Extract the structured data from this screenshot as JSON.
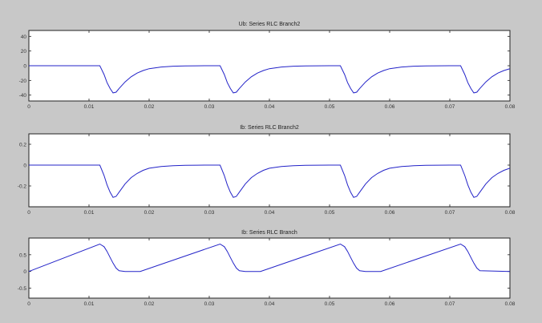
{
  "chart_data": [
    {
      "type": "line",
      "title": "Ub: Series RLC Branch2",
      "xlim": [
        0,
        0.08
      ],
      "ylim": [
        -48,
        48
      ],
      "xticks": [
        0,
        0.01,
        0.02,
        0.03,
        0.04,
        0.05,
        0.06,
        0.07,
        0.08
      ],
      "xtick_labels": [
        "0",
        "0.01",
        "0.02",
        "0.03",
        "0.04",
        "0.05",
        "0.06",
        "0.07",
        "0.08"
      ],
      "yticks": [
        40,
        20,
        0,
        -20,
        -40
      ],
      "ytick_labels": [
        "40",
        "20",
        "0",
        "-20",
        "-40"
      ],
      "series": [
        {
          "color": "#2323c8",
          "x": [
            0,
            0.0118,
            0.0125,
            0.013,
            0.0135,
            0.014,
            0.0145,
            0.015,
            0.016,
            0.017,
            0.018,
            0.019,
            0.02,
            0.022,
            0.024,
            0.026,
            0.028,
            0.03,
            0.0318,
            0.0325,
            0.033,
            0.0335,
            0.034,
            0.0345,
            0.035,
            0.036,
            0.037,
            0.038,
            0.039,
            0.04,
            0.042,
            0.044,
            0.046,
            0.048,
            0.05,
            0.0518,
            0.0525,
            0.053,
            0.0535,
            0.054,
            0.0545,
            0.055,
            0.056,
            0.057,
            0.058,
            0.059,
            0.06,
            0.062,
            0.064,
            0.066,
            0.068,
            0.07,
            0.0718,
            0.0725,
            0.073,
            0.0735,
            0.074,
            0.0745,
            0.075,
            0.076,
            0.077,
            0.078,
            0.079,
            0.08
          ],
          "y": [
            0,
            0,
            -12,
            -23,
            -31,
            -37,
            -36,
            -31,
            -22,
            -15,
            -10,
            -6.5,
            -4,
            -1.7,
            -0.7,
            -0.3,
            -0.1,
            0,
            0,
            -12,
            -23,
            -31,
            -37,
            -36,
            -31,
            -22,
            -15,
            -10,
            -6.5,
            -4,
            -1.7,
            -0.7,
            -0.3,
            -0.1,
            0,
            0,
            -12,
            -23,
            -31,
            -37,
            -36,
            -31,
            -22,
            -15,
            -10,
            -6.5,
            -4,
            -1.7,
            -0.7,
            -0.3,
            -0.1,
            0,
            0,
            -12,
            -23,
            -31,
            -37,
            -36,
            -31,
            -22,
            -15,
            -10,
            -6.5,
            -4
          ]
        }
      ]
    },
    {
      "type": "line",
      "title": "Ib: Series RLC Branch2",
      "xlim": [
        0,
        0.08
      ],
      "ylim": [
        -0.4,
        0.3
      ],
      "xticks": [
        0,
        0.01,
        0.02,
        0.03,
        0.04,
        0.05,
        0.06,
        0.07,
        0.08
      ],
      "xtick_labels": [
        "0",
        "0.01",
        "0.02",
        "0.03",
        "0.04",
        "0.05",
        "0.06",
        "0.07",
        "0.08"
      ],
      "yticks": [
        0.2,
        0,
        -0.2
      ],
      "ytick_labels": [
        "0.2",
        "0",
        "-0.2"
      ],
      "series": [
        {
          "color": "#2323c8",
          "x": [
            0,
            0.0118,
            0.0125,
            0.013,
            0.0135,
            0.014,
            0.0145,
            0.015,
            0.016,
            0.017,
            0.018,
            0.019,
            0.02,
            0.022,
            0.024,
            0.026,
            0.028,
            0.03,
            0.0318,
            0.0325,
            0.033,
            0.0335,
            0.034,
            0.0345,
            0.035,
            0.036,
            0.037,
            0.038,
            0.039,
            0.04,
            0.042,
            0.044,
            0.046,
            0.048,
            0.05,
            0.0518,
            0.0525,
            0.053,
            0.0535,
            0.054,
            0.0545,
            0.055,
            0.056,
            0.057,
            0.058,
            0.059,
            0.06,
            0.062,
            0.064,
            0.066,
            0.068,
            0.07,
            0.0718,
            0.0725,
            0.073,
            0.0735,
            0.074,
            0.0745,
            0.075,
            0.076,
            0.077,
            0.078,
            0.079,
            0.08
          ],
          "y": [
            0,
            0,
            -0.1,
            -0.19,
            -0.26,
            -0.31,
            -0.3,
            -0.26,
            -0.18,
            -0.12,
            -0.08,
            -0.05,
            -0.03,
            -0.014,
            -0.006,
            -0.002,
            -0.001,
            0,
            0,
            -0.1,
            -0.19,
            -0.26,
            -0.31,
            -0.3,
            -0.26,
            -0.18,
            -0.12,
            -0.08,
            -0.05,
            -0.03,
            -0.014,
            -0.006,
            -0.002,
            -0.001,
            0,
            0,
            -0.1,
            -0.19,
            -0.26,
            -0.31,
            -0.3,
            -0.26,
            -0.18,
            -0.12,
            -0.08,
            -0.05,
            -0.03,
            -0.014,
            -0.006,
            -0.002,
            -0.001,
            0,
            0,
            -0.1,
            -0.19,
            -0.26,
            -0.31,
            -0.3,
            -0.26,
            -0.18,
            -0.12,
            -0.08,
            -0.05,
            -0.03
          ]
        }
      ]
    },
    {
      "type": "line",
      "title": "Ib: Series RLC Branch",
      "xlim": [
        0,
        0.08
      ],
      "ylim": [
        -0.8,
        1.0
      ],
      "xticks": [
        0,
        0.01,
        0.02,
        0.03,
        0.04,
        0.05,
        0.06,
        0.07,
        0.08
      ],
      "xtick_labels": [
        "0",
        "0.01",
        "0.02",
        "0.03",
        "0.04",
        "0.05",
        "0.06",
        "0.07",
        "0.08"
      ],
      "yticks": [
        0.5,
        0,
        -0.5
      ],
      "ytick_labels": [
        "0.5",
        "0",
        "-0.5"
      ],
      "series": [
        {
          "color": "#2323c8",
          "x": [
            0,
            0.0118,
            0.0125,
            0.013,
            0.0135,
            0.014,
            0.0145,
            0.015,
            0.016,
            0.0175,
            0.0185,
            0.0318,
            0.0325,
            0.033,
            0.0335,
            0.034,
            0.0345,
            0.035,
            0.036,
            0.0375,
            0.0385,
            0.0518,
            0.0525,
            0.053,
            0.0535,
            0.054,
            0.0545,
            0.055,
            0.056,
            0.0575,
            0.0585,
            0.0718,
            0.0725,
            0.073,
            0.0735,
            0.074,
            0.0745,
            0.075,
            0.08
          ],
          "y": [
            0,
            0.82,
            0.74,
            0.6,
            0.42,
            0.25,
            0.1,
            0.02,
            0,
            0,
            0,
            0.82,
            0.74,
            0.6,
            0.42,
            0.25,
            0.1,
            0.02,
            0,
            0,
            0,
            0.82,
            0.74,
            0.6,
            0.42,
            0.25,
            0.1,
            0.02,
            0,
            0,
            0,
            0.82,
            0.74,
            0.6,
            0.42,
            0.25,
            0.1,
            0.02,
            0
          ]
        }
      ]
    }
  ]
}
